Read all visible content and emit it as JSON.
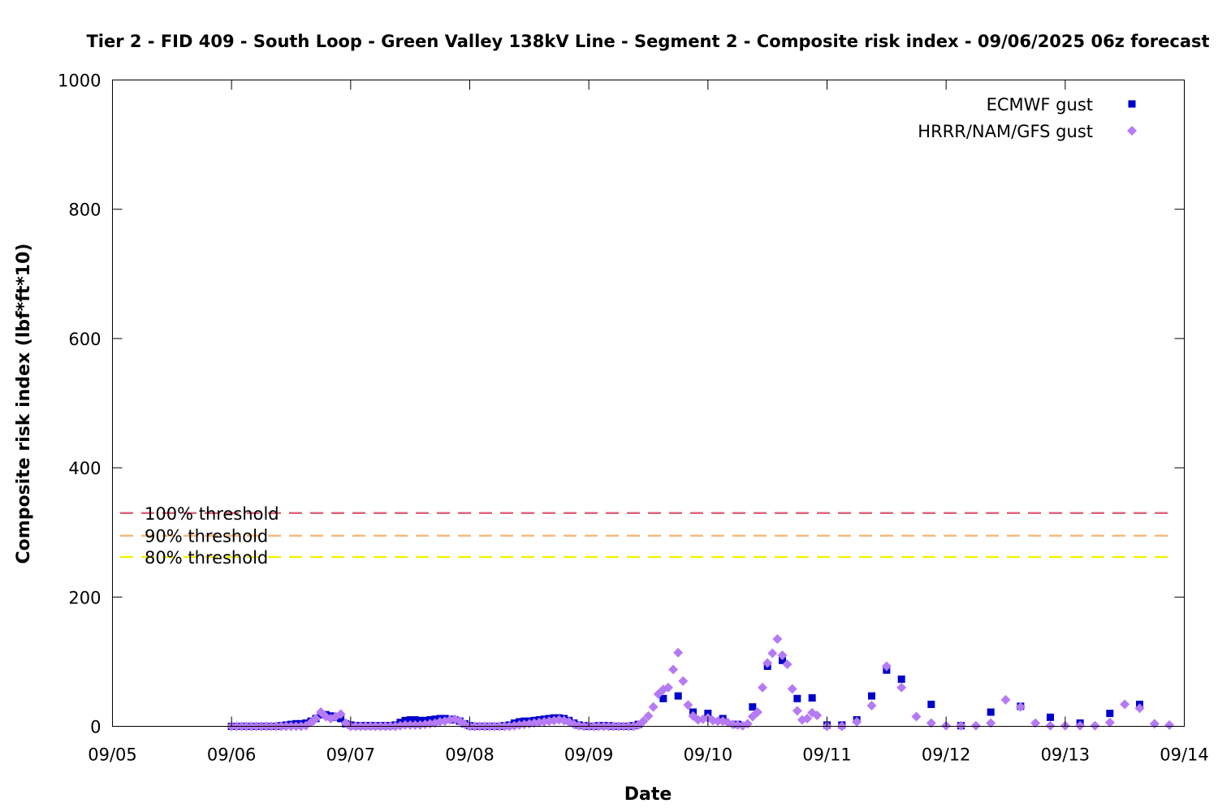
{
  "chart_data": {
    "type": "scatter",
    "title": "Tier 2 - FID 409 - South Loop - Green Valley 138kV Line - Segment 2 - Composite risk index - 09/06/2025 06z forecast",
    "xlabel": "Date",
    "ylabel": "Composite risk index (lbf*ft*10)",
    "xlim": [
      "2025-09-05T00:00",
      "2025-09-14T00:00"
    ],
    "ylim": [
      0,
      1000
    ],
    "x_ticks": [
      "09/05",
      "09/06",
      "09/07",
      "09/08",
      "09/09",
      "09/10",
      "09/11",
      "09/12",
      "09/13",
      "09/14"
    ],
    "x_tick_dates": [
      "2025-09-05",
      "2025-09-06",
      "2025-09-07",
      "2025-09-08",
      "2025-09-09",
      "2025-09-10",
      "2025-09-11",
      "2025-09-12",
      "2025-09-13",
      "2025-09-14"
    ],
    "y_ticks": [
      0,
      200,
      400,
      600,
      800,
      1000
    ],
    "grid": false,
    "legend_position": "top-right",
    "thresholds": [
      {
        "label": "100% threshold",
        "value": 330,
        "color": "#e0607a"
      },
      {
        "label": "90% threshold",
        "value": 295,
        "color": "#f5b87a"
      },
      {
        "label": "80% threshold",
        "value": 262,
        "color": "#f2f200"
      }
    ],
    "series": [
      {
        "name": "ECMWF gust",
        "color": "#0000cc",
        "marker": "square",
        "points": [
          [
            "2025-09-06T00:00",
            0
          ],
          [
            "2025-09-06T01:00",
            0
          ],
          [
            "2025-09-06T02:00",
            0
          ],
          [
            "2025-09-06T03:00",
            0
          ],
          [
            "2025-09-06T04:00",
            0
          ],
          [
            "2025-09-06T05:00",
            0
          ],
          [
            "2025-09-06T06:00",
            0
          ],
          [
            "2025-09-06T07:00",
            0
          ],
          [
            "2025-09-06T08:00",
            0
          ],
          [
            "2025-09-06T09:00",
            0
          ],
          [
            "2025-09-06T10:00",
            1
          ],
          [
            "2025-09-06T11:00",
            2
          ],
          [
            "2025-09-06T12:00",
            3
          ],
          [
            "2025-09-06T13:00",
            4
          ],
          [
            "2025-09-06T14:00",
            4
          ],
          [
            "2025-09-06T15:00",
            5
          ],
          [
            "2025-09-06T16:00",
            8
          ],
          [
            "2025-09-06T17:00",
            12
          ],
          [
            "2025-09-06T18:00",
            18
          ],
          [
            "2025-09-06T19:00",
            18
          ],
          [
            "2025-09-06T20:00",
            16
          ],
          [
            "2025-09-06T21:00",
            14
          ],
          [
            "2025-09-06T22:00",
            12
          ],
          [
            "2025-09-06T23:00",
            4
          ],
          [
            "2025-09-07T00:00",
            2
          ],
          [
            "2025-09-07T01:00",
            1
          ],
          [
            "2025-09-07T02:00",
            1
          ],
          [
            "2025-09-07T03:00",
            1
          ],
          [
            "2025-09-07T04:00",
            1
          ],
          [
            "2025-09-07T05:00",
            1
          ],
          [
            "2025-09-07T06:00",
            1
          ],
          [
            "2025-09-07T07:00",
            1
          ],
          [
            "2025-09-07T08:00",
            1
          ],
          [
            "2025-09-07T09:00",
            2
          ],
          [
            "2025-09-07T10:00",
            6
          ],
          [
            "2025-09-07T11:00",
            9
          ],
          [
            "2025-09-07T12:00",
            10
          ],
          [
            "2025-09-07T13:00",
            10
          ],
          [
            "2025-09-07T14:00",
            9
          ],
          [
            "2025-09-07T15:00",
            9
          ],
          [
            "2025-09-07T16:00",
            10
          ],
          [
            "2025-09-07T17:00",
            11
          ],
          [
            "2025-09-07T18:00",
            12
          ],
          [
            "2025-09-07T19:00",
            12
          ],
          [
            "2025-09-07T20:00",
            11
          ],
          [
            "2025-09-07T21:00",
            10
          ],
          [
            "2025-09-07T22:00",
            8
          ],
          [
            "2025-09-07T23:00",
            4
          ],
          [
            "2025-09-08T00:00",
            1
          ],
          [
            "2025-09-08T01:00",
            0
          ],
          [
            "2025-09-08T02:00",
            0
          ],
          [
            "2025-09-08T03:00",
            0
          ],
          [
            "2025-09-08T04:00",
            0
          ],
          [
            "2025-09-08T05:00",
            0
          ],
          [
            "2025-09-08T06:00",
            0
          ],
          [
            "2025-09-08T07:00",
            1
          ],
          [
            "2025-09-08T08:00",
            2
          ],
          [
            "2025-09-08T09:00",
            5
          ],
          [
            "2025-09-08T10:00",
            7
          ],
          [
            "2025-09-08T11:00",
            8
          ],
          [
            "2025-09-08T12:00",
            8
          ],
          [
            "2025-09-08T13:00",
            9
          ],
          [
            "2025-09-08T14:00",
            10
          ],
          [
            "2025-09-08T15:00",
            11
          ],
          [
            "2025-09-08T16:00",
            12
          ],
          [
            "2025-09-08T17:00",
            13
          ],
          [
            "2025-09-08T18:00",
            13
          ],
          [
            "2025-09-08T19:00",
            12
          ],
          [
            "2025-09-08T20:00",
            9
          ],
          [
            "2025-09-08T21:00",
            5
          ],
          [
            "2025-09-08T22:00",
            2
          ],
          [
            "2025-09-08T23:00",
            1
          ],
          [
            "2025-09-09T00:00",
            0
          ],
          [
            "2025-09-09T01:00",
            0
          ],
          [
            "2025-09-09T02:00",
            1
          ],
          [
            "2025-09-09T03:00",
            1
          ],
          [
            "2025-09-09T04:00",
            1
          ],
          [
            "2025-09-09T05:00",
            0
          ],
          [
            "2025-09-09T06:00",
            0
          ],
          [
            "2025-09-09T07:00",
            0
          ],
          [
            "2025-09-09T08:00",
            0
          ],
          [
            "2025-09-09T09:00",
            1
          ],
          [
            "2025-09-09T10:00",
            3
          ],
          [
            "2025-09-09T15:00",
            43
          ],
          [
            "2025-09-09T18:00",
            47
          ],
          [
            "2025-09-09T21:00",
            22
          ],
          [
            "2025-09-10T00:00",
            20
          ],
          [
            "2025-09-10T03:00",
            12
          ],
          [
            "2025-09-10T06:00",
            3
          ],
          [
            "2025-09-10T09:00",
            30
          ],
          [
            "2025-09-10T12:00",
            93
          ],
          [
            "2025-09-10T15:00",
            102
          ],
          [
            "2025-09-10T18:00",
            43
          ],
          [
            "2025-09-10T21:00",
            44
          ],
          [
            "2025-09-11T00:00",
            2
          ],
          [
            "2025-09-11T03:00",
            2
          ],
          [
            "2025-09-11T06:00",
            10
          ],
          [
            "2025-09-11T09:00",
            47
          ],
          [
            "2025-09-11T12:00",
            87
          ],
          [
            "2025-09-11T15:00",
            73
          ],
          [
            "2025-09-11T21:00",
            34
          ],
          [
            "2025-09-12T03:00",
            1
          ],
          [
            "2025-09-12T09:00",
            22
          ],
          [
            "2025-09-12T15:00",
            31
          ],
          [
            "2025-09-12T21:00",
            14
          ],
          [
            "2025-09-13T03:00",
            5
          ],
          [
            "2025-09-13T09:00",
            20
          ],
          [
            "2025-09-13T15:00",
            34
          ]
        ]
      },
      {
        "name": "HRRR/NAM/GFS gust",
        "color": "#b57af5",
        "marker": "diamond",
        "points": [
          [
            "2025-09-06T00:00",
            0
          ],
          [
            "2025-09-06T01:00",
            0
          ],
          [
            "2025-09-06T02:00",
            0
          ],
          [
            "2025-09-06T03:00",
            0
          ],
          [
            "2025-09-06T04:00",
            0
          ],
          [
            "2025-09-06T05:00",
            0
          ],
          [
            "2025-09-06T06:00",
            0
          ],
          [
            "2025-09-06T07:00",
            0
          ],
          [
            "2025-09-06T08:00",
            0
          ],
          [
            "2025-09-06T09:00",
            0
          ],
          [
            "2025-09-06T10:00",
            0
          ],
          [
            "2025-09-06T11:00",
            0
          ],
          [
            "2025-09-06T12:00",
            0
          ],
          [
            "2025-09-06T13:00",
            0
          ],
          [
            "2025-09-06T14:00",
            0
          ],
          [
            "2025-09-06T15:00",
            1
          ],
          [
            "2025-09-06T16:00",
            6
          ],
          [
            "2025-09-06T17:00",
            12
          ],
          [
            "2025-09-06T18:00",
            22
          ],
          [
            "2025-09-06T19:00",
            15
          ],
          [
            "2025-09-06T20:00",
            12
          ],
          [
            "2025-09-06T21:00",
            15
          ],
          [
            "2025-09-06T22:00",
            19
          ],
          [
            "2025-09-06T23:00",
            5
          ],
          [
            "2025-09-07T00:00",
            0
          ],
          [
            "2025-09-07T01:00",
            0
          ],
          [
            "2025-09-07T02:00",
            0
          ],
          [
            "2025-09-07T03:00",
            0
          ],
          [
            "2025-09-07T04:00",
            0
          ],
          [
            "2025-09-07T05:00",
            0
          ],
          [
            "2025-09-07T06:00",
            0
          ],
          [
            "2025-09-07T07:00",
            0
          ],
          [
            "2025-09-07T08:00",
            0
          ],
          [
            "2025-09-07T09:00",
            0
          ],
          [
            "2025-09-07T10:00",
            1
          ],
          [
            "2025-09-07T11:00",
            2
          ],
          [
            "2025-09-07T12:00",
            2
          ],
          [
            "2025-09-07T13:00",
            2
          ],
          [
            "2025-09-07T14:00",
            2
          ],
          [
            "2025-09-07T15:00",
            3
          ],
          [
            "2025-09-07T16:00",
            4
          ],
          [
            "2025-09-07T17:00",
            5
          ],
          [
            "2025-09-07T18:00",
            7
          ],
          [
            "2025-09-07T19:00",
            8
          ],
          [
            "2025-09-07T20:00",
            10
          ],
          [
            "2025-09-07T21:00",
            11
          ],
          [
            "2025-09-07T22:00",
            8
          ],
          [
            "2025-09-07T23:00",
            3
          ],
          [
            "2025-09-08T00:00",
            0
          ],
          [
            "2025-09-08T01:00",
            0
          ],
          [
            "2025-09-08T02:00",
            0
          ],
          [
            "2025-09-08T03:00",
            0
          ],
          [
            "2025-09-08T04:00",
            0
          ],
          [
            "2025-09-08T05:00",
            0
          ],
          [
            "2025-09-08T06:00",
            0
          ],
          [
            "2025-09-08T07:00",
            0
          ],
          [
            "2025-09-08T08:00",
            0
          ],
          [
            "2025-09-08T09:00",
            1
          ],
          [
            "2025-09-08T10:00",
            2
          ],
          [
            "2025-09-08T11:00",
            3
          ],
          [
            "2025-09-08T12:00",
            4
          ],
          [
            "2025-09-08T13:00",
            5
          ],
          [
            "2025-09-08T14:00",
            6
          ],
          [
            "2025-09-08T15:00",
            7
          ],
          [
            "2025-09-08T16:00",
            8
          ],
          [
            "2025-09-08T17:00",
            9
          ],
          [
            "2025-09-08T18:00",
            10
          ],
          [
            "2025-09-08T19:00",
            9
          ],
          [
            "2025-09-08T20:00",
            7
          ],
          [
            "2025-09-08T21:00",
            3
          ],
          [
            "2025-09-08T22:00",
            1
          ],
          [
            "2025-09-08T23:00",
            0
          ],
          [
            "2025-09-09T00:00",
            0
          ],
          [
            "2025-09-09T01:00",
            0
          ],
          [
            "2025-09-09T02:00",
            0
          ],
          [
            "2025-09-09T03:00",
            0
          ],
          [
            "2025-09-09T04:00",
            0
          ],
          [
            "2025-09-09T05:00",
            0
          ],
          [
            "2025-09-09T06:00",
            0
          ],
          [
            "2025-09-09T07:00",
            0
          ],
          [
            "2025-09-09T08:00",
            0
          ],
          [
            "2025-09-09T09:00",
            0
          ],
          [
            "2025-09-09T10:00",
            2
          ],
          [
            "2025-09-09T11:00",
            8
          ],
          [
            "2025-09-09T12:00",
            16
          ],
          [
            "2025-09-09T13:00",
            30
          ],
          [
            "2025-09-09T14:00",
            50
          ],
          [
            "2025-09-09T15:00",
            57
          ],
          [
            "2025-09-09T16:00",
            60
          ],
          [
            "2025-09-09T17:00",
            88
          ],
          [
            "2025-09-09T18:00",
            114
          ],
          [
            "2025-09-09T19:00",
            70
          ],
          [
            "2025-09-09T20:00",
            33
          ],
          [
            "2025-09-09T21:00",
            16
          ],
          [
            "2025-09-09T22:00",
            10
          ],
          [
            "2025-09-09T23:00",
            11
          ],
          [
            "2025-09-10T00:00",
            13
          ],
          [
            "2025-09-10T01:00",
            9
          ],
          [
            "2025-09-10T02:00",
            8
          ],
          [
            "2025-09-10T03:00",
            8
          ],
          [
            "2025-09-10T04:00",
            6
          ],
          [
            "2025-09-10T05:00",
            3
          ],
          [
            "2025-09-10T06:00",
            2
          ],
          [
            "2025-09-10T07:00",
            1
          ],
          [
            "2025-09-10T08:00",
            4
          ],
          [
            "2025-09-10T09:00",
            15
          ],
          [
            "2025-09-10T10:00",
            22
          ],
          [
            "2025-09-10T11:00",
            60
          ],
          [
            "2025-09-10T12:00",
            98
          ],
          [
            "2025-09-10T13:00",
            113
          ],
          [
            "2025-09-10T14:00",
            135
          ],
          [
            "2025-09-10T15:00",
            110
          ],
          [
            "2025-09-10T16:00",
            96
          ],
          [
            "2025-09-10T17:00",
            58
          ],
          [
            "2025-09-10T18:00",
            24
          ],
          [
            "2025-09-10T19:00",
            10
          ],
          [
            "2025-09-10T20:00",
            12
          ],
          [
            "2025-09-10T21:00",
            21
          ],
          [
            "2025-09-10T22:00",
            17
          ],
          [
            "2025-09-11T00:00",
            0
          ],
          [
            "2025-09-11T03:00",
            0
          ],
          [
            "2025-09-11T06:00",
            7
          ],
          [
            "2025-09-11T09:00",
            32
          ],
          [
            "2025-09-11T12:00",
            93
          ],
          [
            "2025-09-11T15:00",
            60
          ],
          [
            "2025-09-11T18:00",
            15
          ],
          [
            "2025-09-11T21:00",
            5
          ],
          [
            "2025-09-12T00:00",
            1
          ],
          [
            "2025-09-12T03:00",
            1
          ],
          [
            "2025-09-12T06:00",
            1
          ],
          [
            "2025-09-12T09:00",
            5
          ],
          [
            "2025-09-12T12:00",
            41
          ],
          [
            "2025-09-12T15:00",
            30
          ],
          [
            "2025-09-12T18:00",
            5
          ],
          [
            "2025-09-12T21:00",
            1
          ],
          [
            "2025-09-13T00:00",
            1
          ],
          [
            "2025-09-13T03:00",
            1
          ],
          [
            "2025-09-13T06:00",
            1
          ],
          [
            "2025-09-13T09:00",
            6
          ],
          [
            "2025-09-13T12:00",
            34
          ],
          [
            "2025-09-13T15:00",
            28
          ],
          [
            "2025-09-13T18:00",
            4
          ],
          [
            "2025-09-13T21:00",
            2
          ]
        ]
      }
    ]
  }
}
